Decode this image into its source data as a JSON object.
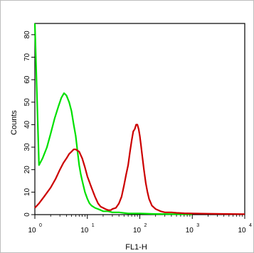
{
  "chart_data": {
    "type": "line",
    "title": "",
    "xlabel": "FL1-H",
    "ylabel": "Counts",
    "x_scale": "log",
    "xlim": [
      1,
      10000
    ],
    "ylim": [
      0,
      85
    ],
    "x_ticks": [
      {
        "base": "10",
        "exp": "0",
        "value": 1
      },
      {
        "base": "10",
        "exp": "1",
        "value": 10
      },
      {
        "base": "10",
        "exp": "2",
        "value": 100
      },
      {
        "base": "10",
        "exp": "3",
        "value": 1000
      },
      {
        "base": "10",
        "exp": "4",
        "value": 10000
      }
    ],
    "y_ticks": [
      "0",
      "10",
      "20",
      "30",
      "40",
      "50",
      "60",
      "70",
      "80"
    ],
    "grid": false,
    "legend": "none",
    "series": [
      {
        "color": "#00e000",
        "x": [
          1.0,
          1.2,
          1.4,
          1.7,
          2.0,
          2.4,
          2.8,
          3.2,
          3.6,
          4.0,
          4.5,
          5.0,
          5.5,
          6.0,
          6.5,
          7.0,
          7.5,
          8.0,
          9.0,
          10,
          11,
          12,
          14,
          16,
          18,
          20,
          25,
          30,
          40,
          60,
          100,
          200,
          500,
          1000
        ],
        "y": [
          85,
          22,
          25,
          30,
          36,
          43,
          48,
          52,
          54,
          53,
          50,
          46,
          40,
          35,
          28,
          22,
          18,
          15,
          10,
          7,
          5,
          4,
          3,
          2.5,
          2,
          1.5,
          1.5,
          1,
          1,
          0.5,
          0.5,
          0.3,
          0.2,
          0.1
        ]
      },
      {
        "color": "#cc0000",
        "x": [
          1.0,
          1.2,
          1.5,
          2.0,
          2.5,
          3.0,
          3.5,
          4.0,
          4.5,
          5.0,
          5.5,
          6.0,
          7.0,
          8.0,
          9.0,
          10,
          12,
          14,
          16,
          18,
          20,
          22,
          25,
          28,
          30,
          35,
          40,
          45,
          50,
          55,
          60,
          65,
          70,
          75,
          80,
          85,
          90,
          95,
          100,
          105,
          110,
          120,
          130,
          140,
          150,
          170,
          200,
          250,
          300,
          400,
          500,
          700,
          1000,
          2000,
          5000,
          10000
        ],
        "y": [
          3,
          5,
          8,
          12,
          16,
          20,
          23,
          25,
          27,
          28,
          29,
          29,
          28,
          25,
          21,
          17,
          12,
          8,
          5,
          3.5,
          3,
          2.5,
          2,
          2,
          2.5,
          3,
          5,
          8,
          13,
          18,
          22,
          28,
          33,
          37,
          38,
          40,
          40,
          38,
          35,
          31,
          27,
          20,
          14,
          10,
          7,
          4,
          2.5,
          1.5,
          1,
          1,
          0.8,
          0.6,
          0.5,
          0.4,
          0.3,
          0.2
        ]
      }
    ]
  }
}
